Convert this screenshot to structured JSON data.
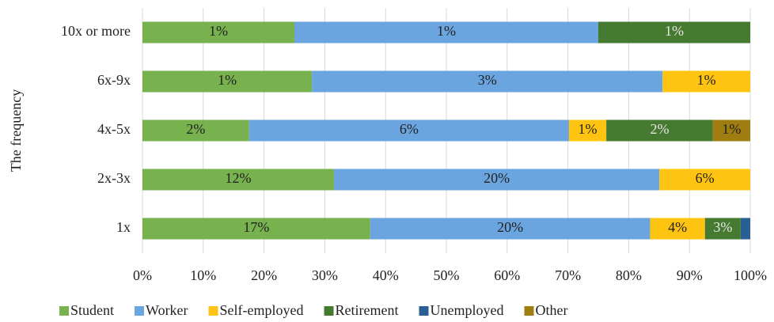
{
  "chart_data": {
    "type": "bar",
    "orientation": "horizontal",
    "stacked100": true,
    "y_label": "The frequency",
    "categories": [
      "1x",
      "2x-3x",
      "4x-5x",
      "6x-9x",
      "10x or more"
    ],
    "series": [
      {
        "name": "Student",
        "color": "#77b24f",
        "values": [
          16.6,
          11.6,
          2.0,
          1.45,
          0.6
        ],
        "value_labels": [
          "17%",
          "12%",
          "2%",
          "1%",
          "1%"
        ]
      },
      {
        "name": "Worker",
        "color": "#6aa5e0",
        "values": [
          20.4,
          19.7,
          6.0,
          3.0,
          1.2
        ],
        "value_labels": [
          "20%",
          "20%",
          "6%",
          "3%",
          "1%"
        ]
      },
      {
        "name": "Self-employed",
        "color": "#ffc312",
        "values": [
          4.0,
          5.5,
          0.7,
          0.75,
          null
        ],
        "value_labels": [
          "4%",
          "6%",
          "1%",
          "1%",
          null
        ]
      },
      {
        "name": "Retirement",
        "color": "#467a30",
        "values": [
          2.6,
          null,
          2.0,
          null,
          0.6
        ],
        "value_labels": [
          "3%",
          null,
          "2%",
          null,
          "1%"
        ]
      },
      {
        "name": "Unemployed",
        "color": "#2a5f94",
        "values": [
          0.7,
          null,
          null,
          null,
          null
        ],
        "value_labels": [
          null,
          null,
          null,
          null,
          null
        ]
      },
      {
        "name": "Other",
        "color": "#a07d10",
        "values": [
          null,
          null,
          0.7,
          null,
          null
        ],
        "value_labels": [
          null,
          null,
          "1%",
          null,
          null
        ]
      }
    ],
    "xlim": [
      0,
      100
    ],
    "xticks": [
      {
        "value": 0,
        "label": "0%"
      },
      {
        "value": 10,
        "label": "10%"
      },
      {
        "value": 20,
        "label": "20%"
      },
      {
        "value": 30,
        "label": "30%"
      },
      {
        "value": 40,
        "label": "40%"
      },
      {
        "value": 50,
        "label": "50%"
      },
      {
        "value": 60,
        "label": "60%"
      },
      {
        "value": 70,
        "label": "70%"
      },
      {
        "value": 80,
        "label": "80%"
      },
      {
        "value": 90,
        "label": "90%"
      },
      {
        "value": 100,
        "label": "100%"
      }
    ],
    "grid": true,
    "legend": "bottom"
  }
}
